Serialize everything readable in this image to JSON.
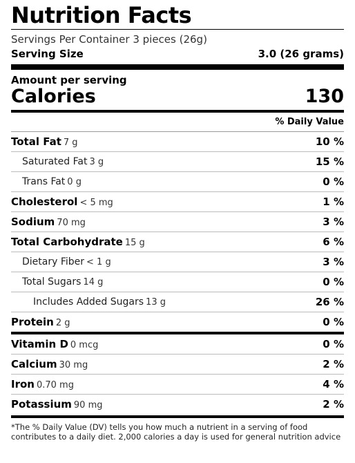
{
  "title": "Nutrition Facts",
  "servings_per_container": "Servings Per Container 3 pieces (26g)",
  "serving_size": {
    "label": "Serving Size",
    "value": "3.0 (26 grams)"
  },
  "amount_per_serving": "Amount per serving",
  "calories": {
    "label": "Calories",
    "value": "130"
  },
  "daily_value_header": "% Daily Value",
  "nutrients": [
    {
      "name": "Total Fat",
      "amount": "7 g",
      "dv": "10 %",
      "bold": true,
      "indent": 0
    },
    {
      "name": "Saturated Fat",
      "amount": "3 g",
      "dv": "15 %",
      "bold": false,
      "indent": 1
    },
    {
      "name": "Trans Fat",
      "amount": "0 g",
      "dv": "0 %",
      "bold": false,
      "indent": 1
    },
    {
      "name": "Cholesterol",
      "amount": "< 5 mg",
      "dv": "1 %",
      "bold": true,
      "indent": 0
    },
    {
      "name": "Sodium",
      "amount": "70 mg",
      "dv": "3 %",
      "bold": true,
      "indent": 0
    },
    {
      "name": "Total Carbohydrate",
      "amount": "15 g",
      "dv": "6 %",
      "bold": true,
      "indent": 0
    },
    {
      "name": "Dietary Fiber",
      "amount": "< 1 g",
      "dv": "3 %",
      "bold": false,
      "indent": 1
    },
    {
      "name": "Total Sugars",
      "amount": "14 g",
      "dv": "0 %",
      "bold": false,
      "indent": 1
    },
    {
      "name": "Includes Added Sugars",
      "amount": "13 g",
      "dv": "26 %",
      "bold": false,
      "indent": 2
    },
    {
      "name": "Protein",
      "amount": "2 g",
      "dv": "0 %",
      "bold": true,
      "indent": 0
    }
  ],
  "vitamins": [
    {
      "name": "Vitamin D",
      "amount": "0 mcg",
      "dv": "0 %"
    },
    {
      "name": "Calcium",
      "amount": "30 mg",
      "dv": "2 %"
    },
    {
      "name": "Iron",
      "amount": "0.70 mg",
      "dv": "4 %"
    },
    {
      "name": "Potassium",
      "amount": "90 mg",
      "dv": "2 %"
    }
  ],
  "footnote": "*The % Daily Value (DV) tells you how much a nutrient in a serving of food contributes to a daily diet. 2,000 calories a day is used for general nutrition advice"
}
